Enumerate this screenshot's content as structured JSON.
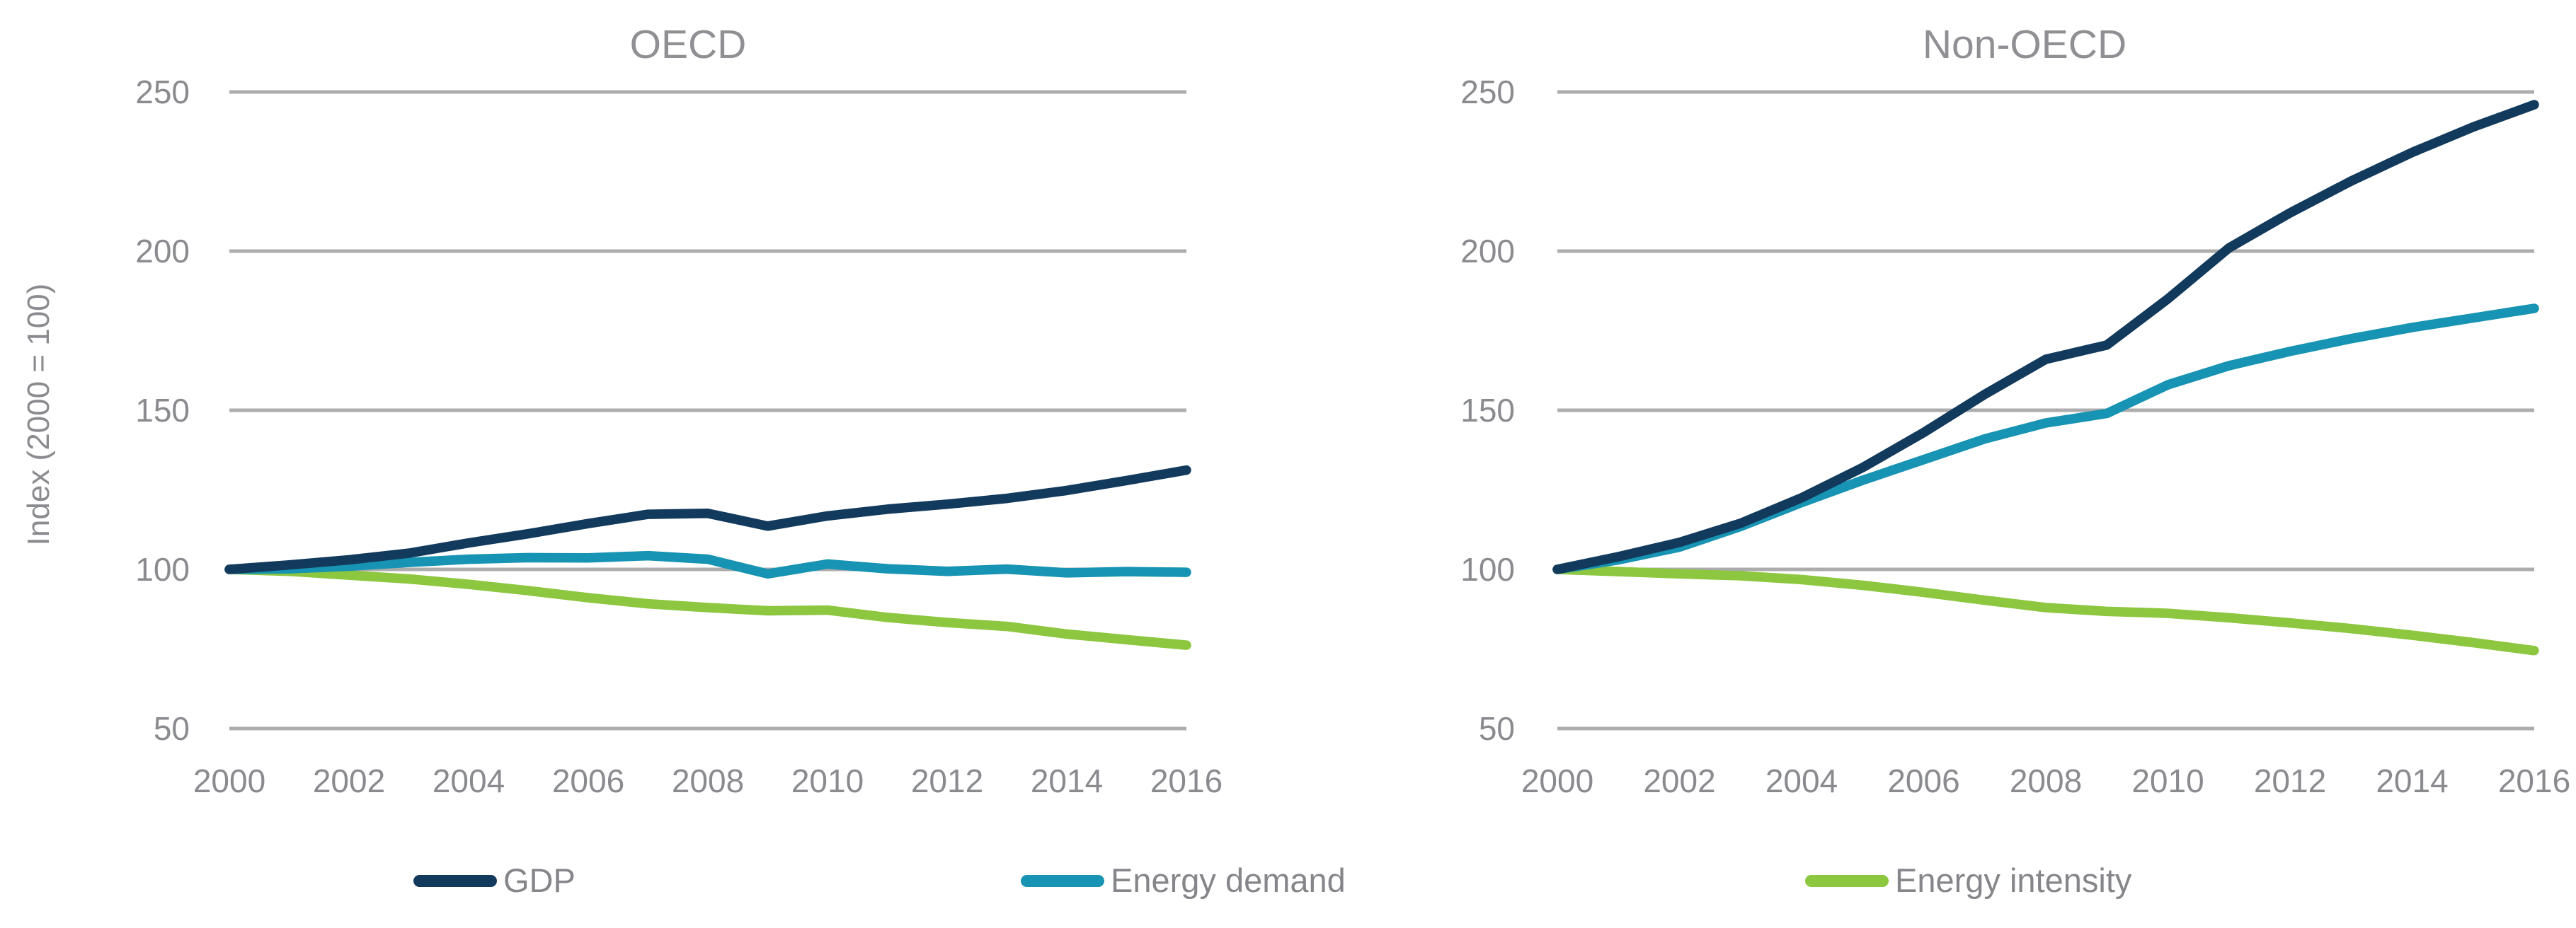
{
  "figure_title": "",
  "y_axis": {
    "title": "Index (2000 = 100)",
    "ticks": [
      250,
      200,
      150,
      100,
      50
    ]
  },
  "colors": {
    "gdp": "#123A5D",
    "energy_demand": "#1793B3",
    "energy_intensity": "#8DC63F",
    "gridline": "#ACACAC",
    "tick_text": "#8A8B8F",
    "title_text": "#909094"
  },
  "legend": {
    "items": [
      {
        "label": "GDP",
        "color": "#123A5D"
      },
      {
        "label": "Energy demand",
        "color": "#1793B3"
      },
      {
        "label": "Energy intensity",
        "color": "#8DC63F"
      }
    ]
  },
  "chart_data": [
    {
      "type": "line",
      "title": "OECD",
      "ylabel": "Index (2000 = 100)",
      "x": [
        2000,
        2001,
        2002,
        2003,
        2004,
        2005,
        2006,
        2007,
        2008,
        2009,
        2010,
        2011,
        2012,
        2013,
        2014,
        2015,
        2016
      ],
      "x_tick_labels": [
        "2000",
        "2002",
        "2004",
        "2006",
        "2008",
        "2010",
        "2012",
        "2014",
        "2016"
      ],
      "y_ticks": [
        250,
        200,
        150,
        100,
        50
      ],
      "ylim": [
        50,
        250
      ],
      "grid": "horizontal-gray-lines",
      "legend_position": "bottom",
      "series": [
        {
          "name": "GDP",
          "color": "#123A5D",
          "values": [
            100,
            101.4,
            103,
            105.1,
            108.3,
            111.2,
            114.4,
            117.3,
            117.6,
            113.6,
            116.8,
            118.9,
            120.5,
            122.3,
            124.8,
            127.9,
            131.2
          ]
        },
        {
          "name": "Energy demand",
          "color": "#1793B3",
          "values": [
            100,
            100.2,
            101,
            102.2,
            103.2,
            103.7,
            103.6,
            104.3,
            103.2,
            98.6,
            101.7,
            100.2,
            99.4,
            100.1,
            98.9,
            99.3,
            99.1
          ]
        },
        {
          "name": "Energy intensity",
          "color": "#8DC63F",
          "values": [
            100,
            99.4,
            98.2,
            97,
            95.3,
            93.3,
            91.1,
            89.2,
            88,
            87,
            87.2,
            84.9,
            83.3,
            82.1,
            79.7,
            77.9,
            76.2
          ]
        }
      ]
    },
    {
      "type": "line",
      "title": "Non-OECD",
      "ylabel": "Index (2000 = 100)",
      "x": [
        2000,
        2001,
        2002,
        2003,
        2004,
        2005,
        2006,
        2007,
        2008,
        2009,
        2010,
        2011,
        2012,
        2013,
        2014,
        2015,
        2016
      ],
      "x_tick_labels": [
        "2000",
        "2002",
        "2004",
        "2006",
        "2008",
        "2010",
        "2012",
        "2014",
        "2016"
      ],
      "y_ticks": [
        250,
        200,
        150,
        100,
        50
      ],
      "ylim": [
        50,
        250
      ],
      "grid": "horizontal-gray-lines",
      "legend_position": "bottom",
      "series": [
        {
          "name": "GDP",
          "color": "#123A5D",
          "values": [
            100,
            104,
            108.5,
            114.5,
            122.5,
            132,
            143,
            155,
            166,
            170.5,
            185,
            201,
            212,
            222,
            231,
            239,
            246
          ]
        },
        {
          "name": "Energy demand",
          "color": "#1793B3",
          "values": [
            100,
            103,
            107,
            113.5,
            121,
            128,
            134.5,
            141,
            146,
            149,
            158,
            164,
            168.5,
            172.5,
            176,
            179,
            182
          ]
        },
        {
          "name": "Energy intensity",
          "color": "#8DC63F",
          "values": [
            100,
            99.3,
            98.6,
            98,
            96.8,
            95,
            92.8,
            90.3,
            88,
            86.8,
            86.2,
            84.8,
            83.2,
            81.4,
            79.3,
            77,
            74.5
          ]
        }
      ]
    }
  ]
}
